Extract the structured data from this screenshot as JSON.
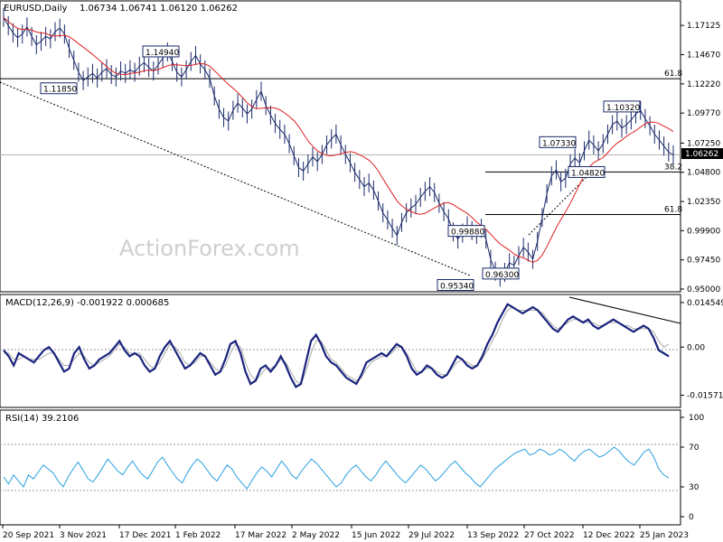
{
  "chart_data": [
    {
      "type": "candlestick",
      "title": "EURUSD,Daily",
      "ohlc": "1.06734 1.06741 1.06120 1.06262",
      "current_price": "1.06262",
      "watermark": "ActionForex.com",
      "ylim": [
        0.95,
        1.185
      ],
      "y_ticks": [
        "1.17125",
        "1.14670",
        "1.12220",
        "1.09770",
        "1.07250",
        "1.04800",
        "1.02350",
        "0.99900",
        "0.97450",
        "0.95000"
      ],
      "x_ticks": [
        "20 Sep 2021",
        "3 Nov 2021",
        "17 Dec 2021",
        "1 Feb 2022",
        "17 Mar 2022",
        "2 May 2022",
        "15 Jun 2022",
        "29 Jul 2022",
        "13 Sep 2022",
        "27 Oct 2022",
        "12 Dec 2022",
        "25 Jan 2023"
      ],
      "annotations": [
        {
          "text": "1.14940",
          "x": "Feb 2022",
          "y": 1.1494
        },
        {
          "text": "1.11850",
          "x": "Nov 2021",
          "y": 1.1185
        },
        {
          "text": "1.10320",
          "x": "Jan 2023",
          "y": 1.1032
        },
        {
          "text": "1.07330",
          "x": "Dec 2022",
          "y": 1.0733
        },
        {
          "text": "1.04820",
          "x": "Dec 2022",
          "y": 1.0482
        },
        {
          "text": "0.99880",
          "x": "Aug 2022",
          "y": 0.9988
        },
        {
          "text": "0.96300",
          "x": "Sep 2022",
          "y": 0.963
        },
        {
          "text": "0.95340",
          "x": "Sep 2022",
          "y": 0.9534
        }
      ],
      "fib_levels": [
        {
          "label": "61.8",
          "value": 1.1265
        },
        {
          "label": "38.2",
          "value": 1.0483
        },
        {
          "label": "61.8",
          "value": 1.0125
        }
      ],
      "price_line": 1.06262,
      "close_path": [
        1.178,
        1.171,
        1.165,
        1.161,
        1.164,
        1.17,
        1.162,
        1.155,
        1.158,
        1.162,
        1.16,
        1.166,
        1.169,
        1.164,
        1.152,
        1.142,
        1.132,
        1.125,
        1.128,
        1.131,
        1.127,
        1.132,
        1.135,
        1.13,
        1.128,
        1.133,
        1.131,
        1.134,
        1.132,
        1.137,
        1.14,
        1.136,
        1.133,
        1.138,
        1.144,
        1.149,
        1.141,
        1.132,
        1.128,
        1.134,
        1.141,
        1.146,
        1.139,
        1.134,
        1.127,
        1.112,
        1.101,
        1.094,
        1.091,
        1.1,
        1.106,
        1.102,
        1.097,
        1.101,
        1.109,
        1.116,
        1.104,
        1.096,
        1.089,
        1.084,
        1.08,
        1.072,
        1.062,
        1.052,
        1.049,
        1.055,
        1.061,
        1.057,
        1.063,
        1.071,
        1.076,
        1.08,
        1.071,
        1.063,
        1.056,
        1.048,
        1.042,
        1.036,
        1.039,
        1.033,
        1.024,
        1.014,
        1.008,
        1.001,
        0.995,
        1.006,
        1.014,
        1.018,
        1.021,
        1.027,
        1.032,
        1.036,
        1.031,
        1.022,
        1.015,
        1.009,
        0.998,
        0.992,
        0.997,
        1.003,
        0.999,
        0.996,
        1.001,
        0.992,
        0.975,
        0.965,
        0.96,
        0.964,
        0.972,
        0.97,
        0.978,
        0.985,
        0.981,
        0.975,
        0.99,
        1.01,
        1.03,
        1.045,
        1.05,
        1.04,
        1.043,
        1.055,
        1.06,
        1.056,
        1.066,
        1.075,
        1.071,
        1.066,
        1.072,
        1.08,
        1.088,
        1.091,
        1.085,
        1.088,
        1.092,
        1.097,
        1.1,
        1.093,
        1.087,
        1.08,
        1.075,
        1.07,
        1.065,
        1.0626
      ]
    },
    {
      "type": "line",
      "title": "MACD(12,26,9) -0.001922 0.000685",
      "y_ticks": [
        "0.014549",
        "0.00",
        "-0.015712"
      ],
      "ylim": [
        -0.0182,
        0.0154
      ],
      "series": [],
      "macd_path": [
        -0.001,
        -0.003,
        -0.006,
        -0.002,
        -0.003,
        -0.004,
        -0.005,
        -0.003,
        -0.001,
        0.0,
        -0.002,
        -0.005,
        -0.008,
        -0.007,
        -0.002,
        0.0,
        -0.004,
        -0.007,
        -0.006,
        -0.004,
        -0.003,
        -0.002,
        0.0,
        0.002,
        -0.001,
        -0.003,
        -0.002,
        -0.003,
        -0.006,
        -0.008,
        -0.007,
        -0.003,
        0.0,
        0.002,
        -0.001,
        -0.004,
        -0.007,
        -0.006,
        -0.004,
        -0.002,
        -0.003,
        -0.006,
        -0.009,
        -0.008,
        -0.004,
        0.001,
        0.002,
        -0.002,
        -0.008,
        -0.012,
        -0.011,
        -0.007,
        -0.006,
        -0.008,
        -0.006,
        -0.003,
        -0.006,
        -0.01,
        -0.013,
        -0.012,
        -0.005,
        0.002,
        0.004,
        0.001,
        -0.003,
        -0.005,
        -0.006,
        -0.008,
        -0.01,
        -0.011,
        -0.012,
        -0.009,
        -0.005,
        -0.004,
        -0.003,
        -0.002,
        -0.003,
        -0.001,
        0.001,
        0.0,
        -0.003,
        -0.007,
        -0.009,
        -0.008,
        -0.006,
        -0.007,
        -0.009,
        -0.01,
        -0.009,
        -0.006,
        -0.003,
        -0.004,
        -0.006,
        -0.007,
        -0.006,
        -0.003,
        0.001,
        0.004,
        0.008,
        0.011,
        0.014,
        0.013,
        0.012,
        0.011,
        0.012,
        0.013,
        0.012,
        0.01,
        0.008,
        0.006,
        0.005,
        0.007,
        0.009,
        0.01,
        0.009,
        0.008,
        0.009,
        0.007,
        0.006,
        0.007,
        0.008,
        0.009,
        0.008,
        0.007,
        0.006,
        0.005,
        0.006,
        0.007,
        0.006,
        0.003,
        -0.001,
        -0.002,
        -0.003
      ],
      "signal_path": [
        -0.002,
        -0.002,
        -0.004,
        -0.004,
        -0.003,
        -0.004,
        -0.004,
        -0.004,
        -0.003,
        -0.002,
        -0.002,
        -0.004,
        -0.006,
        -0.006,
        -0.004,
        -0.002,
        -0.003,
        -0.005,
        -0.006,
        -0.005,
        -0.004,
        -0.003,
        -0.001,
        0.001,
        0.0,
        -0.002,
        -0.002,
        -0.002,
        -0.004,
        -0.006,
        -0.007,
        -0.005,
        -0.002,
        0.001,
        0.0,
        -0.002,
        -0.005,
        -0.006,
        -0.005,
        -0.003,
        -0.003,
        -0.005,
        -0.007,
        -0.008,
        -0.006,
        -0.002,
        0.001,
        0.0,
        -0.005,
        -0.009,
        -0.011,
        -0.009,
        -0.007,
        -0.007,
        -0.006,
        -0.004,
        -0.005,
        -0.008,
        -0.011,
        -0.012,
        -0.008,
        -0.002,
        0.002,
        0.002,
        -0.001,
        -0.004,
        -0.005,
        -0.007,
        -0.009,
        -0.01,
        -0.011,
        -0.01,
        -0.007,
        -0.005,
        -0.004,
        -0.003,
        -0.003,
        -0.002,
        0.0,
        0.0,
        -0.002,
        -0.005,
        -0.008,
        -0.008,
        -0.007,
        -0.007,
        -0.008,
        -0.009,
        -0.009,
        -0.007,
        -0.005,
        -0.004,
        -0.005,
        -0.006,
        -0.006,
        -0.004,
        -0.001,
        0.002,
        0.005,
        0.009,
        0.012,
        0.013,
        0.012,
        0.012,
        0.012,
        0.012,
        0.012,
        0.011,
        0.009,
        0.007,
        0.006,
        0.007,
        0.008,
        0.009,
        0.009,
        0.008,
        0.008,
        0.008,
        0.007,
        0.007,
        0.008,
        0.008,
        0.008,
        0.007,
        0.007,
        0.006,
        0.006,
        0.006,
        0.006,
        0.005,
        0.002,
        0.0,
        0.001
      ]
    },
    {
      "type": "line",
      "title": "RSI(14) 39.2106",
      "y_ticks": [
        "100",
        "70",
        "30",
        "0"
      ],
      "ylim": [
        0,
        100
      ],
      "rsi_path": [
        40,
        33,
        42,
        36,
        30,
        42,
        38,
        45,
        52,
        48,
        44,
        36,
        30,
        40,
        48,
        55,
        47,
        38,
        35,
        42,
        50,
        58,
        52,
        46,
        42,
        50,
        56,
        48,
        42,
        38,
        46,
        55,
        60,
        52,
        45,
        38,
        34,
        44,
        52,
        58,
        54,
        47,
        40,
        36,
        44,
        52,
        48,
        40,
        34,
        28,
        36,
        44,
        50,
        46,
        40,
        48,
        56,
        50,
        42,
        38,
        46,
        52,
        58,
        54,
        48,
        42,
        36,
        30,
        34,
        42,
        48,
        52,
        46,
        40,
        36,
        42,
        50,
        56,
        50,
        44,
        38,
        34,
        40,
        46,
        52,
        48,
        42,
        36,
        40,
        46,
        52,
        56,
        50,
        44,
        40,
        34,
        30,
        36,
        42,
        48,
        52,
        56,
        60,
        64,
        66,
        68,
        62,
        64,
        68,
        66,
        62,
        64,
        68,
        65,
        60,
        56,
        62,
        66,
        68,
        64,
        60,
        62,
        66,
        70,
        66,
        60,
        55,
        52,
        58,
        65,
        68,
        60,
        48,
        42,
        39
      ]
    }
  ]
}
